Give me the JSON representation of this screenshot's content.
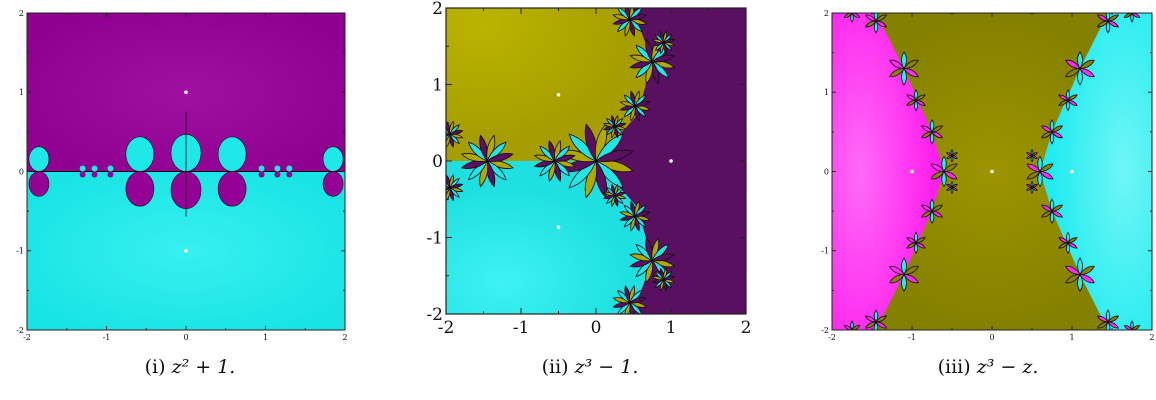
{
  "figure": {
    "panels": [
      {
        "id": "i",
        "caption_label": "(i)",
        "caption_math": "z² + 1.",
        "colors": {
          "top": "#950095",
          "bottom": "#1ee8e8",
          "boundary": "#1a0a1a"
        },
        "roots_marked": [
          [
            0,
            1
          ],
          [
            0,
            -1
          ]
        ]
      },
      {
        "id": "ii",
        "caption_label": "(ii)",
        "caption_math": "z³ − 1.",
        "colors": {
          "upper_left": "#b0aa00",
          "lower_left": "#22e6e6",
          "right": "#5a1060",
          "boundary": "#111111"
        },
        "roots_marked": [
          [
            1,
            0
          ],
          [
            -0.5,
            0.866
          ],
          [
            -0.5,
            -0.866
          ]
        ]
      },
      {
        "id": "iii",
        "caption_label": "(iii)",
        "caption_math": "z³ − z.",
        "colors": {
          "left": "#ff2ef0",
          "middle": "#8a8200",
          "right": "#26eef0",
          "boundary": "#111111"
        },
        "roots_marked": [
          [
            -1,
            0
          ],
          [
            0,
            0
          ],
          [
            1,
            0
          ]
        ]
      }
    ]
  },
  "chart_data": [
    {
      "type": "heatmap",
      "xlim": [
        -2,
        2
      ],
      "ylim": [
        -2,
        2
      ],
      "xticks": [
        "-2",
        "-1",
        "0",
        "1",
        "2"
      ],
      "yticks": [
        "2",
        "1",
        "0",
        "-1",
        "-2"
      ]
    },
    {
      "type": "heatmap",
      "xlim": [
        -2,
        2
      ],
      "ylim": [
        -2,
        2
      ],
      "xticks": [
        "-2",
        "-1",
        "0",
        "1",
        "2"
      ],
      "yticks": [
        "2",
        "1",
        "0",
        "-1",
        "-2"
      ]
    },
    {
      "type": "heatmap",
      "xlim": [
        -2,
        2
      ],
      "ylim": [
        -2,
        2
      ],
      "xticks": [
        "-2",
        "-1",
        "0",
        "1",
        "2"
      ],
      "yticks": [
        "2",
        "1",
        "0",
        "-1",
        "-2"
      ]
    }
  ]
}
